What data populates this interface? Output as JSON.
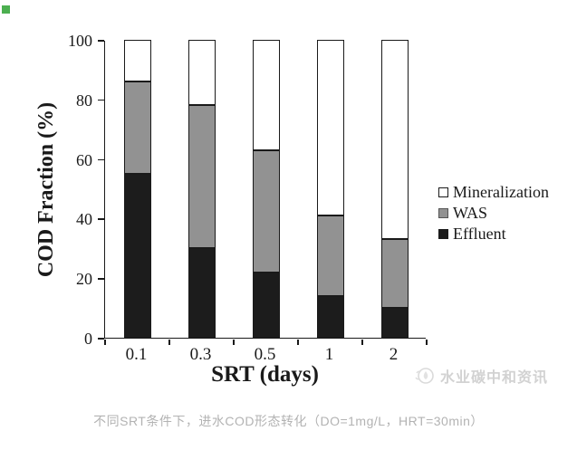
{
  "chart_data": {
    "type": "bar",
    "stacked": true,
    "categories": [
      "0.1",
      "0.3",
      "0.5",
      "1",
      "2"
    ],
    "series": [
      {
        "name": "Effluent",
        "color": "#1c1c1c",
        "values": [
          55,
          30,
          22,
          14,
          10
        ]
      },
      {
        "name": "WAS",
        "color": "#929292",
        "values": [
          31,
          48,
          41,
          27,
          23
        ]
      },
      {
        "name": "Mineralization",
        "color": "#ffffff",
        "values": [
          14,
          22,
          37,
          59,
          67
        ]
      }
    ],
    "xlabel": "SRT (days)",
    "ylabel": "COD Fraction (%)",
    "ylim": [
      0,
      100
    ],
    "yticks": [
      0,
      20,
      40,
      60,
      80,
      100
    ],
    "grid": false,
    "legend_position": "right-middle",
    "legend_order": [
      "Mineralization",
      "WAS",
      "Effluent"
    ]
  },
  "watermark": {
    "text": "水业碳中和资讯",
    "icon": "water-drop-logo",
    "color": "#d2d2d2"
  },
  "caption": {
    "text": "不同SRT条件下，进水COD形态转化（DO=1mg/L，HRT=30min）"
  },
  "decor": {
    "green_square_color": "#4caf50"
  },
  "colors": {
    "axis": "#1a1a1a",
    "bar_outline": "#1a1a1a",
    "background": "#ffffff"
  }
}
